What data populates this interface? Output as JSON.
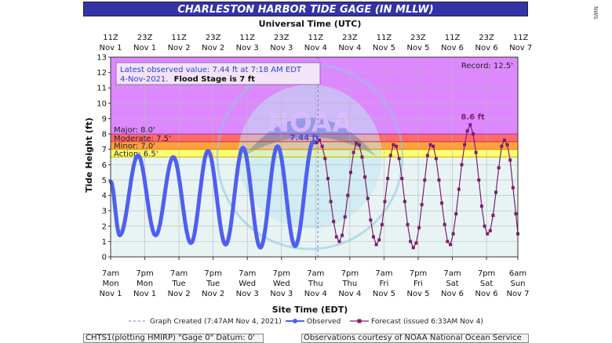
{
  "title": "CHARLESTON HARBOR TIDE GAGE (IN MLLW)",
  "side_credit": "NWS",
  "top_axis_title": "Universal Time (UTC)",
  "bottom_axis_title": "Site Time (EDT)",
  "y_axis_title": "Tide Height (ft)",
  "info_box": {
    "line1": "Latest observed value: 7.44 ft at 7:18 AM EDT",
    "line2_date": "4-Nov-2021.",
    "line2_flood": "Flood Stage is 7 ft"
  },
  "record_label": "Record: 12.5'",
  "stage_labels": {
    "major": "Major: 8.0'",
    "moderate": "Moderate: 7.5'",
    "minor": "Minor: 7.0'",
    "action": "Action: 6.5'"
  },
  "annotations": {
    "current": "7.44 ft",
    "peak": "8.6 ft"
  },
  "legend": {
    "created": "Graph Created (7:47AM Nov 4, 2021)",
    "observed": "Observed",
    "forecast": "Forecast (issued 6:33AM Nov 4)"
  },
  "footer": {
    "left": "CHTS1(plotting HMIRP) \"Gage 0\" Datum: 0'",
    "right": "Observations courtesy of NOAA National Ocean Service"
  },
  "watermark": "NOAA",
  "colors": {
    "title_bg": "#3333a8",
    "observed": "#4f5ff0",
    "forecast": "#7a1f6e",
    "major": "#dd88ff",
    "moderate": "#ff6a6a",
    "minor": "#ffa040",
    "action": "#ffff70"
  },
  "chart_data": {
    "type": "line",
    "ylim": [
      0,
      13
    ],
    "yticks": [
      0,
      1,
      2,
      3,
      4,
      5,
      6,
      7,
      8,
      9,
      10,
      11,
      12,
      13
    ],
    "xlim_hours_from_nov1_7am": [
      0,
      143
    ],
    "top_ticks": [
      {
        "h": 0,
        "l1": "11Z",
        "l2": "Nov 1"
      },
      {
        "h": 12,
        "l1": "23Z",
        "l2": "Nov 1"
      },
      {
        "h": 24,
        "l1": "11Z",
        "l2": "Nov 2"
      },
      {
        "h": 36,
        "l1": "23Z",
        "l2": "Nov 2"
      },
      {
        "h": 48,
        "l1": "11Z",
        "l2": "Nov 3"
      },
      {
        "h": 60,
        "l1": "23Z",
        "l2": "Nov 3"
      },
      {
        "h": 72,
        "l1": "11Z",
        "l2": "Nov 4"
      },
      {
        "h": 84,
        "l1": "23Z",
        "l2": "Nov 4"
      },
      {
        "h": 96,
        "l1": "11Z",
        "l2": "Nov 5"
      },
      {
        "h": 108,
        "l1": "23Z",
        "l2": "Nov 5"
      },
      {
        "h": 120,
        "l1": "11Z",
        "l2": "Nov 6"
      },
      {
        "h": 132,
        "l1": "23Z",
        "l2": "Nov 6"
      },
      {
        "h": 144,
        "l1": "11Z",
        "l2": "Nov 7"
      }
    ],
    "bottom_ticks": [
      {
        "h": 0,
        "l1": "7am",
        "l2": "Mon",
        "l3": "Nov 1"
      },
      {
        "h": 12,
        "l1": "7pm",
        "l2": "Mon",
        "l3": "Nov 1"
      },
      {
        "h": 24,
        "l1": "7am",
        "l2": "Tue",
        "l3": "Nov 2"
      },
      {
        "h": 36,
        "l1": "7pm",
        "l2": "Tue",
        "l3": "Nov 2"
      },
      {
        "h": 48,
        "l1": "7am",
        "l2": "Wed",
        "l3": "Nov 3"
      },
      {
        "h": 60,
        "l1": "7pm",
        "l2": "Wed",
        "l3": "Nov 3"
      },
      {
        "h": 72,
        "l1": "7am",
        "l2": "Thu",
        "l3": "Nov 4"
      },
      {
        "h": 84,
        "l1": "7pm",
        "l2": "Thu",
        "l3": "Nov 4"
      },
      {
        "h": 96,
        "l1": "7am",
        "l2": "Fri",
        "l3": "Nov 5"
      },
      {
        "h": 108,
        "l1": "7pm",
        "l2": "Fri",
        "l3": "Nov 5"
      },
      {
        "h": 120,
        "l1": "7am",
        "l2": "Sat",
        "l3": "Nov 6"
      },
      {
        "h": 132,
        "l1": "7pm",
        "l2": "Sat",
        "l3": "Nov 6"
      },
      {
        "h": 143,
        "l1": "6am",
        "l2": "Sun",
        "l3": "Nov 7"
      }
    ],
    "stages": {
      "action": 6.5,
      "minor": 7.0,
      "moderate": 7.5,
      "major": 8.0,
      "top": 13
    },
    "graph_created_hour": 72.8,
    "observed_extrema": [
      {
        "h": 0,
        "v": 4.9
      },
      {
        "h": 3.2,
        "v": 1.4
      },
      {
        "h": 9.6,
        "v": 6.6
      },
      {
        "h": 15.8,
        "v": 1.4
      },
      {
        "h": 22.0,
        "v": 6.5
      },
      {
        "h": 28.2,
        "v": 0.9
      },
      {
        "h": 34.2,
        "v": 6.9
      },
      {
        "h": 40.4,
        "v": 0.8
      },
      {
        "h": 46.5,
        "v": 7.1
      },
      {
        "h": 52.6,
        "v": 0.6
      },
      {
        "h": 58.6,
        "v": 7.2
      },
      {
        "h": 64.8,
        "v": 0.7
      },
      {
        "h": 71.2,
        "v": 7.5
      },
      {
        "h": 72.3,
        "v": 7.44
      }
    ],
    "forecast": [
      {
        "h": 72.3,
        "v": 7.44
      },
      {
        "h": 73.3,
        "v": 7.6
      },
      {
        "h": 74.3,
        "v": 7.2
      },
      {
        "h": 75.3,
        "v": 6.4
      },
      {
        "h": 76.3,
        "v": 5.1
      },
      {
        "h": 77.3,
        "v": 3.6
      },
      {
        "h": 78.3,
        "v": 2.3
      },
      {
        "h": 79.3,
        "v": 1.3
      },
      {
        "h": 80.3,
        "v": 1.0
      },
      {
        "h": 81.3,
        "v": 1.4
      },
      {
        "h": 82.3,
        "v": 2.6
      },
      {
        "h": 83.3,
        "v": 4.0
      },
      {
        "h": 84.3,
        "v": 5.5
      },
      {
        "h": 85.3,
        "v": 6.8
      },
      {
        "h": 86.3,
        "v": 7.4
      },
      {
        "h": 87.3,
        "v": 7.3
      },
      {
        "h": 88.3,
        "v": 6.5
      },
      {
        "h": 89.3,
        "v": 5.2
      },
      {
        "h": 90.3,
        "v": 3.8
      },
      {
        "h": 91.3,
        "v": 2.4
      },
      {
        "h": 92.3,
        "v": 1.3
      },
      {
        "h": 93.3,
        "v": 0.8
      },
      {
        "h": 94.3,
        "v": 1.1
      },
      {
        "h": 95.3,
        "v": 2.1
      },
      {
        "h": 96.3,
        "v": 3.6
      },
      {
        "h": 97.3,
        "v": 5.1
      },
      {
        "h": 98.3,
        "v": 6.6
      },
      {
        "h": 99.3,
        "v": 7.3
      },
      {
        "h": 100.3,
        "v": 7.2
      },
      {
        "h": 101.3,
        "v": 6.4
      },
      {
        "h": 102.3,
        "v": 5.1
      },
      {
        "h": 103.3,
        "v": 3.6
      },
      {
        "h": 104.3,
        "v": 2.1
      },
      {
        "h": 105.3,
        "v": 1.0
      },
      {
        "h": 106.3,
        "v": 0.6
      },
      {
        "h": 107.3,
        "v": 0.9
      },
      {
        "h": 108.3,
        "v": 1.9
      },
      {
        "h": 109.3,
        "v": 3.4
      },
      {
        "h": 110.3,
        "v": 5.0
      },
      {
        "h": 111.3,
        "v": 6.6
      },
      {
        "h": 112.3,
        "v": 7.3
      },
      {
        "h": 113.3,
        "v": 7.2
      },
      {
        "h": 114.3,
        "v": 6.4
      },
      {
        "h": 115.3,
        "v": 5.0
      },
      {
        "h": 116.3,
        "v": 3.5
      },
      {
        "h": 117.3,
        "v": 2.1
      },
      {
        "h": 118.3,
        "v": 1.0
      },
      {
        "h": 119.3,
        "v": 0.8
      },
      {
        "h": 120.3,
        "v": 1.5
      },
      {
        "h": 121.3,
        "v": 2.8
      },
      {
        "h": 122.3,
        "v": 4.4
      },
      {
        "h": 123.3,
        "v": 6.0
      },
      {
        "h": 124.3,
        "v": 7.3
      },
      {
        "h": 125.3,
        "v": 8.2
      },
      {
        "h": 126.3,
        "v": 8.6
      },
      {
        "h": 127.3,
        "v": 8.0
      },
      {
        "h": 128.3,
        "v": 6.8
      },
      {
        "h": 129.3,
        "v": 5.0
      },
      {
        "h": 130.3,
        "v": 3.3
      },
      {
        "h": 131.3,
        "v": 2.0
      },
      {
        "h": 132.3,
        "v": 1.5
      },
      {
        "h": 133.3,
        "v": 1.7
      },
      {
        "h": 134.3,
        "v": 2.7
      },
      {
        "h": 135.3,
        "v": 4.2
      },
      {
        "h": 136.3,
        "v": 5.8
      },
      {
        "h": 137.3,
        "v": 7.2
      },
      {
        "h": 138.3,
        "v": 7.6
      },
      {
        "h": 139.3,
        "v": 7.3
      },
      {
        "h": 140.3,
        "v": 6.3
      },
      {
        "h": 141.3,
        "v": 4.5
      },
      {
        "h": 142.3,
        "v": 2.8
      },
      {
        "h": 143.0,
        "v": 1.5
      }
    ]
  }
}
